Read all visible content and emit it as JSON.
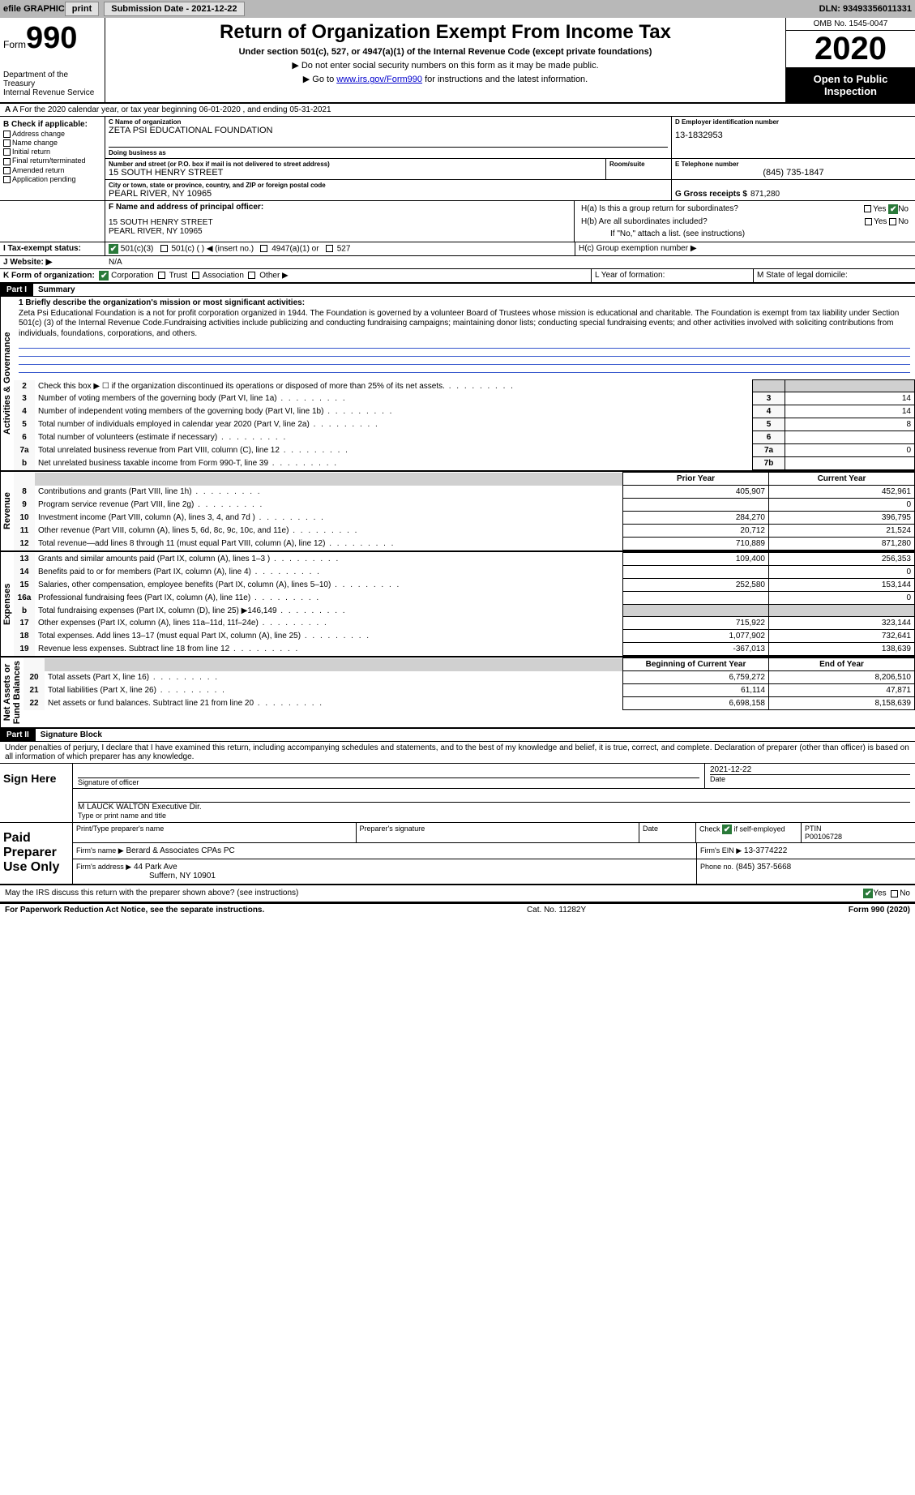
{
  "topbar": {
    "efile": "efile GRAPHIC",
    "print": "print",
    "submission": "Submission Date - 2021-12-22",
    "dln": "DLN: 93493356011331"
  },
  "header": {
    "form_label": "Form",
    "form_no": "990",
    "dept": "Department of the Treasury\nInternal Revenue Service",
    "title": "Return of Organization Exempt From Income Tax",
    "sub": "Under section 501(c), 527, or 4947(a)(1) of the Internal Revenue Code (except private foundations)",
    "note1": "▶ Do not enter social security numbers on this form as it may be made public.",
    "note2_pre": "▶ Go to ",
    "note2_link": "www.irs.gov/Form990",
    "note2_post": " for instructions and the latest information.",
    "omb": "OMB No. 1545-0047",
    "year": "2020",
    "open": "Open to Public Inspection"
  },
  "line_a": "A For the 2020 calendar year, or tax year beginning 06-01-2020   , and ending 05-31-2021",
  "box_b": {
    "hdr": "B Check if applicable:",
    "items": [
      "Address change",
      "Name change",
      "Initial return",
      "Final return/terminated",
      "Amended return",
      "Application pending"
    ]
  },
  "box_c": {
    "name_label": "C Name of organization",
    "name": "ZETA PSI EDUCATIONAL FOUNDATION",
    "dba_label": "Doing business as",
    "dba": "",
    "street_label": "Number and street (or P.O. box if mail is not delivered to street address)",
    "street": "15 SOUTH HENRY STREET",
    "room_label": "Room/suite",
    "city_label": "City or town, state or province, country, and ZIP or foreign postal code",
    "city": "PEARL RIVER, NY  10965"
  },
  "box_d": {
    "label": "D Employer identification number",
    "val": "13-1832953"
  },
  "box_e": {
    "label": "E Telephone number",
    "val": "(845) 735-1847"
  },
  "box_g": {
    "label": "G Gross receipts $",
    "val": "871,280"
  },
  "box_f": {
    "label": "F Name and address of principal officer:",
    "line1": "15 SOUTH HENRY STREET",
    "line2": "PEARL RIVER, NY  10965"
  },
  "box_h": {
    "a": "H(a)  Is this a group return for subordinates?",
    "b": "H(b)  Are all subordinates included?",
    "note": "If \"No,\" attach a list. (see instructions)",
    "c": "H(c)  Group exemption number ▶",
    "yes": "Yes",
    "no": "No"
  },
  "line_i": {
    "label": "I  Tax-exempt status:",
    "opts": [
      "501(c)(3)",
      "501(c) (  ) ◀ (insert no.)",
      "4947(a)(1) or",
      "527"
    ]
  },
  "line_j": {
    "label": "J  Website: ▶",
    "val": "N/A"
  },
  "line_k": {
    "label": "K Form of organization:",
    "opts": [
      "Corporation",
      "Trust",
      "Association",
      "Other ▶"
    ]
  },
  "line_l": "L Year of formation:",
  "line_m": "M State of legal domicile:",
  "part1": {
    "tag": "Part I",
    "title": "Summary"
  },
  "mission": {
    "q": "1  Briefly describe the organization's mission or most significant activities:",
    "text": "Zeta Psi Educational Foundation is a not for profit corporation organized in 1944. The Foundation is governed by a volunteer Board of Trustees whose mission is educational and charitable. The Foundation is exempt from tax liability under Section 501(c) (3) of the Internal Revenue Code.Fundraising activities include publicizing and conducting fundraising campaigns; maintaining donor lists; conducting special fundraising events; and other activities involved with soliciting contributions from individuals, foundations, corporations, and others."
  },
  "gov_lines": [
    {
      "n": "2",
      "t": "Check this box ▶ ☐ if the organization discontinued its operations or disposed of more than 25% of its net assets.",
      "box": "",
      "v": ""
    },
    {
      "n": "3",
      "t": "Number of voting members of the governing body (Part VI, line 1a)",
      "box": "3",
      "v": "14"
    },
    {
      "n": "4",
      "t": "Number of independent voting members of the governing body (Part VI, line 1b)",
      "box": "4",
      "v": "14"
    },
    {
      "n": "5",
      "t": "Total number of individuals employed in calendar year 2020 (Part V, line 2a)",
      "box": "5",
      "v": "8"
    },
    {
      "n": "6",
      "t": "Total number of volunteers (estimate if necessary)",
      "box": "6",
      "v": ""
    },
    {
      "n": "7a",
      "t": "Total unrelated business revenue from Part VIII, column (C), line 12",
      "box": "7a",
      "v": "0"
    },
    {
      "n": "b",
      "t": "Net unrelated business taxable income from Form 990-T, line 39",
      "box": "7b",
      "v": ""
    }
  ],
  "rev_hdr": {
    "py": "Prior Year",
    "cy": "Current Year"
  },
  "rev_lines": [
    {
      "n": "8",
      "t": "Contributions and grants (Part VIII, line 1h)",
      "py": "405,907",
      "cy": "452,961"
    },
    {
      "n": "9",
      "t": "Program service revenue (Part VIII, line 2g)",
      "py": "",
      "cy": "0"
    },
    {
      "n": "10",
      "t": "Investment income (Part VIII, column (A), lines 3, 4, and 7d )",
      "py": "284,270",
      "cy": "396,795"
    },
    {
      "n": "11",
      "t": "Other revenue (Part VIII, column (A), lines 5, 6d, 8c, 9c, 10c, and 11e)",
      "py": "20,712",
      "cy": "21,524"
    },
    {
      "n": "12",
      "t": "Total revenue—add lines 8 through 11 (must equal Part VIII, column (A), line 12)",
      "py": "710,889",
      "cy": "871,280"
    }
  ],
  "exp_lines": [
    {
      "n": "13",
      "t": "Grants and similar amounts paid (Part IX, column (A), lines 1–3 )",
      "py": "109,400",
      "cy": "256,353"
    },
    {
      "n": "14",
      "t": "Benefits paid to or for members (Part IX, column (A), line 4)",
      "py": "",
      "cy": "0"
    },
    {
      "n": "15",
      "t": "Salaries, other compensation, employee benefits (Part IX, column (A), lines 5–10)",
      "py": "252,580",
      "cy": "153,144"
    },
    {
      "n": "16a",
      "t": "Professional fundraising fees (Part IX, column (A), line 11e)",
      "py": "",
      "cy": "0"
    },
    {
      "n": "b",
      "t": "Total fundraising expenses (Part IX, column (D), line 25) ▶146,149",
      "py": "gray",
      "cy": "gray"
    },
    {
      "n": "17",
      "t": "Other expenses (Part IX, column (A), lines 11a–11d, 11f–24e)",
      "py": "715,922",
      "cy": "323,144"
    },
    {
      "n": "18",
      "t": "Total expenses. Add lines 13–17 (must equal Part IX, column (A), line 25)",
      "py": "1,077,902",
      "cy": "732,641"
    },
    {
      "n": "19",
      "t": "Revenue less expenses. Subtract line 18 from line 12",
      "py": "-367,013",
      "cy": "138,639"
    }
  ],
  "na_hdr": {
    "b": "Beginning of Current Year",
    "e": "End of Year"
  },
  "na_lines": [
    {
      "n": "20",
      "t": "Total assets (Part X, line 16)",
      "py": "6,759,272",
      "cy": "8,206,510"
    },
    {
      "n": "21",
      "t": "Total liabilities (Part X, line 26)",
      "py": "61,114",
      "cy": "47,871"
    },
    {
      "n": "22",
      "t": "Net assets or fund balances. Subtract line 21 from line 20",
      "py": "6,698,158",
      "cy": "8,158,639"
    }
  ],
  "side": {
    "gov": "Activities & Governance",
    "rev": "Revenue",
    "exp": "Expenses",
    "na": "Net Assets or\nFund Balances"
  },
  "part2": {
    "tag": "Part II",
    "title": "Signature Block",
    "decl": "Under penalties of perjury, I declare that I have examined this return, including accompanying schedules and statements, and to the best of my knowledge and belief, it is true, correct, and complete. Declaration of preparer (other than officer) is based on all information of which preparer has any knowledge."
  },
  "sign": {
    "here": "Sign Here",
    "sig_label": "Signature of officer",
    "date": "2021-12-22",
    "name": "M LAUCK WALTON Executive Dir.",
    "name_label": "Type or print name and title"
  },
  "paid": {
    "title": "Paid Preparer Use Only",
    "h1": "Print/Type preparer's name",
    "h2": "Preparer's signature",
    "h3": "Date",
    "h4_pre": "Check",
    "h4_post": "if self-employed",
    "ptin_l": "PTIN",
    "ptin": "P00106728",
    "firm_l": "Firm's name   ▶",
    "firm": "Berard & Associates CPAs PC",
    "ein_l": "Firm's EIN ▶",
    "ein": "13-3774222",
    "addr_l": "Firm's address ▶",
    "addr1": "44 Park Ave",
    "addr2": "Suffern, NY  10901",
    "phone_l": "Phone no.",
    "phone": "(845) 357-5668"
  },
  "discuss": "May the IRS discuss this return with the preparer shown above? (see instructions)",
  "footer": {
    "l": "For Paperwork Reduction Act Notice, see the separate instructions.",
    "c": "Cat. No. 11282Y",
    "r": "Form 990 (2020)"
  }
}
